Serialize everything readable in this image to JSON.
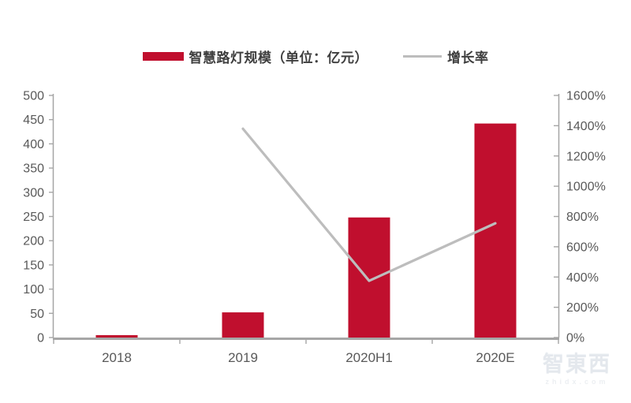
{
  "legend": {
    "bar_label": "智慧路灯规模（单位：亿元）",
    "line_label": "增长率"
  },
  "colors": {
    "bar": "#c00f2e",
    "line": "#bdbdbd",
    "axis": "#a6a6a6",
    "tick_text": "#595959",
    "legend_text": "#3f3f3f"
  },
  "watermark": {
    "logo": "智東西",
    "url": "zhidx.com"
  },
  "chart_data": {
    "type": "bar",
    "categories": [
      "2018",
      "2019",
      "2020H1",
      "2020E"
    ],
    "series": [
      {
        "name": "智慧路灯规模（单位：亿元）",
        "type": "bar",
        "axis": "left",
        "color": "#c00f2e",
        "values": [
          5,
          52,
          248,
          442
        ]
      },
      {
        "name": "增长率",
        "type": "line",
        "axis": "right",
        "color": "#bdbdbd",
        "values": [
          null,
          1380,
          375,
          755
        ]
      }
    ],
    "title": "",
    "xlabel": "",
    "ylabel": "",
    "left_axis": {
      "min": 0,
      "max": 500,
      "step": 50
    },
    "right_axis": {
      "min": 0,
      "max": 1600,
      "step": 200,
      "suffix": "%"
    },
    "grid": false,
    "legend_position": "top"
  }
}
